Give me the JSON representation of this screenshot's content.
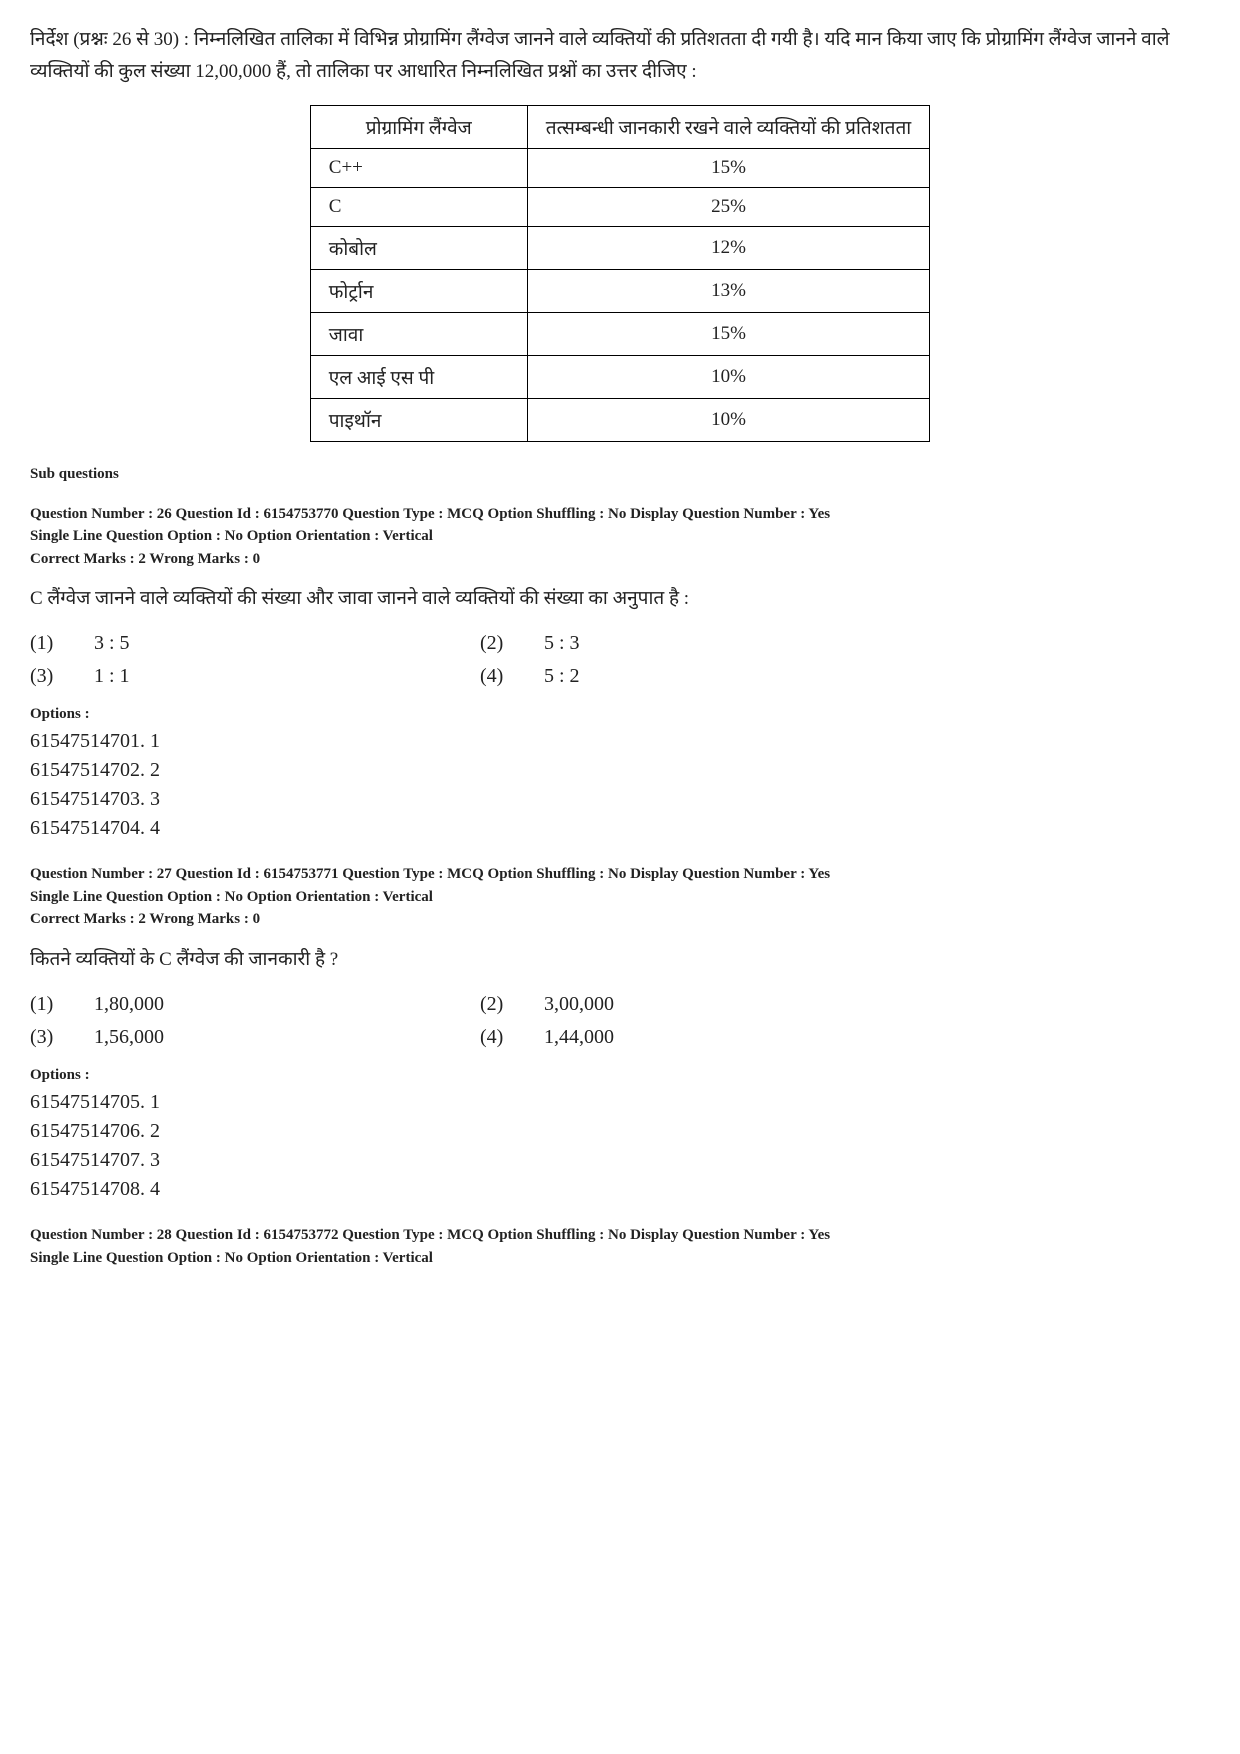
{
  "instructions": "निर्देश (प्रश्नः 26 से 30) : निम्नलिखित तालिका में विभिन्न प्रोग्रामिंग लैंग्वेज जानने वाले व्यक्तियों की प्रतिशतता दी गयी है। यदि मान किया जाए कि प्रोग्रामिंग लैंग्वेज जानने वाले व्यक्तियों की कुल संख्या 12,00,000 हैं, तो तालिका पर आधारित निम्नलिखित प्रश्नों का उत्तर दीजिए :",
  "table": {
    "header_lang": "प्रोग्रामिंग लैंग्वेज",
    "header_pct": "तत्सम्बन्धी जानकारी रखने वाले व्यक्तियों की प्रतिशतता",
    "rows": [
      {
        "lang": "C++",
        "pct": "15%"
      },
      {
        "lang": "C",
        "pct": "25%"
      },
      {
        "lang": "कोबोल",
        "pct": "12%"
      },
      {
        "lang": "फोर्ट्रान",
        "pct": "13%"
      },
      {
        "lang": "जावा",
        "pct": "15%"
      },
      {
        "lang": "एल आई एस पी",
        "pct": "10%"
      },
      {
        "lang": "पाइथॉन",
        "pct": "10%"
      }
    ]
  },
  "sub_questions_label": "Sub questions",
  "options_label": "Options :",
  "q26": {
    "meta_line1": "Question Number : 26  Question Id : 6154753770  Question Type : MCQ  Option Shuffling : No  Display Question Number : Yes",
    "meta_line2": "Single Line Question Option : No  Option Orientation : Vertical",
    "meta_line3": "Correct Marks : 2  Wrong Marks : 0",
    "text": "C लैंग्वेज जानने वाले व्यक्तियों की संख्या और जावा जानने वाले व्यक्तियों की संख्या का अनुपात है :",
    "answers": {
      "n1": "(1)",
      "a1": "3 : 5",
      "n2": "(2)",
      "a2": "5 : 3",
      "n3": "(3)",
      "a3": "1 : 1",
      "n4": "(4)",
      "a4": "5 : 2"
    },
    "options": {
      "o1": "61547514701. 1",
      "o2": "61547514702. 2",
      "o3": "61547514703. 3",
      "o4": "61547514704. 4"
    }
  },
  "q27": {
    "meta_line1": "Question Number : 27  Question Id : 6154753771  Question Type : MCQ  Option Shuffling : No  Display Question Number : Yes",
    "meta_line2": "Single Line Question Option : No  Option Orientation : Vertical",
    "meta_line3": "Correct Marks : 2  Wrong Marks : 0",
    "text": "कितने व्यक्तियों के C लैंग्वेज की जानकारी है ?",
    "answers": {
      "n1": "(1)",
      "a1": "1,80,000",
      "n2": "(2)",
      "a2": "3,00,000",
      "n3": "(3)",
      "a3": "1,56,000",
      "n4": "(4)",
      "a4": "1,44,000"
    },
    "options": {
      "o1": "61547514705. 1",
      "o2": "61547514706. 2",
      "o3": "61547514707. 3",
      "o4": "61547514708. 4"
    }
  },
  "q28": {
    "meta_line1": "Question Number : 28  Question Id : 6154753772  Question Type : MCQ  Option Shuffling : No  Display Question Number : Yes",
    "meta_line2": "Single Line Question Option : No  Option Orientation : Vertical"
  }
}
